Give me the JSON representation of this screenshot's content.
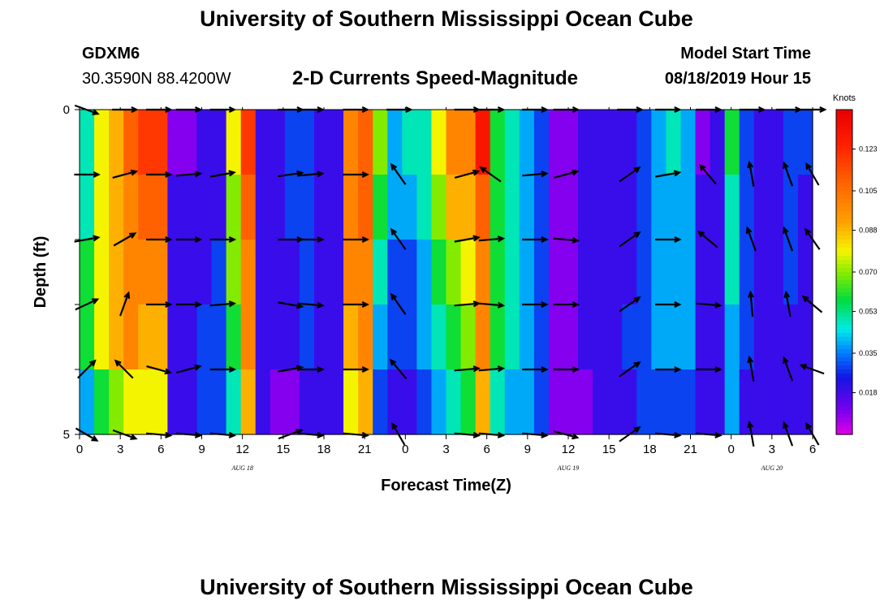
{
  "header": {
    "title": "University of Southern Mississippi Ocean Cube",
    "station": "GDXM6",
    "coords": "30.3590N 88.4200W",
    "subtitle": "2-D Currents Speed-Magnitude",
    "model_label": "Model Start Time",
    "model_time": "08/18/2019 Hour 15"
  },
  "footer": {
    "title": "University of Southern Mississippi Ocean Cube"
  },
  "chart_data": {
    "type": "heatmap",
    "title": "2-D Currents Speed-Magnitude",
    "xlabel": "Forecast Time(Z)",
    "ylabel": "Depth (ft)",
    "x_tick_labels": [
      "0",
      "3",
      "6",
      "9",
      "12",
      "15",
      "18",
      "21",
      "0",
      "3",
      "6",
      "9",
      "12",
      "15",
      "18",
      "21",
      "0",
      "3",
      "6"
    ],
    "x_hours_per_tick": 3,
    "x_range_hours": [
      0,
      54
    ],
    "day_labels": [
      {
        "label": "AUG 18",
        "hour": 12
      },
      {
        "label": "AUG 19",
        "hour": 36
      },
      {
        "label": "AUG 20",
        "hour": 51
      }
    ],
    "y_tick_labels": [
      "0",
      "5"
    ],
    "ylim": [
      0,
      5
    ],
    "depth_layers": 5,
    "colorbar": {
      "unit": "Knots",
      "ticks": [
        "0.123",
        "0.105",
        "0.088",
        "0.070",
        "0.053",
        "0.035",
        "0.018"
      ],
      "range": [
        0,
        0.14
      ]
    },
    "speed_knots": [
      [
        0.05,
        0.08,
        0.09,
        0.11,
        0.12,
        0.12,
        0.01,
        0.01,
        0.02,
        0.02,
        0.08,
        0.12,
        0.02,
        0.02,
        0.03,
        0.03,
        0.02,
        0.02,
        0.1,
        0.11,
        0.07,
        0.04,
        0.05,
        0.05,
        0.08,
        0.1,
        0.1,
        0.13,
        0.06,
        0.05,
        0.04,
        0.03,
        0.01,
        0.01,
        0.02,
        0.02,
        0.02,
        0.02,
        0.03,
        0.04,
        0.05,
        0.04,
        0.01,
        0.02,
        0.06,
        0.03,
        0.02,
        0.02,
        0.03,
        0.03
      ],
      [
        0.05,
        0.08,
        0.09,
        0.1,
        0.11,
        0.11,
        0.02,
        0.02,
        0.02,
        0.02,
        0.07,
        0.11,
        0.02,
        0.02,
        0.03,
        0.03,
        0.02,
        0.02,
        0.1,
        0.11,
        0.06,
        0.04,
        0.04,
        0.05,
        0.07,
        0.09,
        0.09,
        0.11,
        0.06,
        0.05,
        0.04,
        0.03,
        0.01,
        0.01,
        0.02,
        0.02,
        0.02,
        0.02,
        0.03,
        0.04,
        0.04,
        0.04,
        0.02,
        0.02,
        0.05,
        0.03,
        0.02,
        0.02,
        0.03,
        0.02
      ],
      [
        0.06,
        0.08,
        0.09,
        0.1,
        0.1,
        0.1,
        0.02,
        0.02,
        0.02,
        0.03,
        0.07,
        0.1,
        0.02,
        0.02,
        0.02,
        0.03,
        0.02,
        0.02,
        0.1,
        0.1,
        0.05,
        0.03,
        0.03,
        0.04,
        0.06,
        0.07,
        0.08,
        0.1,
        0.06,
        0.05,
        0.04,
        0.03,
        0.01,
        0.01,
        0.02,
        0.02,
        0.02,
        0.02,
        0.03,
        0.04,
        0.04,
        0.04,
        0.02,
        0.02,
        0.05,
        0.03,
        0.02,
        0.02,
        0.03,
        0.02
      ],
      [
        0.06,
        0.08,
        0.09,
        0.1,
        0.09,
        0.09,
        0.02,
        0.02,
        0.03,
        0.03,
        0.06,
        0.1,
        0.02,
        0.02,
        0.02,
        0.03,
        0.02,
        0.02,
        0.09,
        0.1,
        0.04,
        0.03,
        0.03,
        0.04,
        0.05,
        0.06,
        0.07,
        0.1,
        0.06,
        0.05,
        0.04,
        0.03,
        0.01,
        0.01,
        0.02,
        0.02,
        0.02,
        0.03,
        0.03,
        0.04,
        0.04,
        0.04,
        0.02,
        0.02,
        0.04,
        0.03,
        0.02,
        0.02,
        0.02,
        0.02
      ],
      [
        0.04,
        0.06,
        0.07,
        0.08,
        0.08,
        0.08,
        0.02,
        0.02,
        0.03,
        0.03,
        0.05,
        0.09,
        0.02,
        0.01,
        0.01,
        0.02,
        0.02,
        0.02,
        0.08,
        0.09,
        0.03,
        0.02,
        0.02,
        0.03,
        0.04,
        0.05,
        0.06,
        0.09,
        0.05,
        0.04,
        0.04,
        0.03,
        0.01,
        0.01,
        0.01,
        0.02,
        0.02,
        0.02,
        0.03,
        0.03,
        0.03,
        0.03,
        0.02,
        0.02,
        0.04,
        0.02,
        0.02,
        0.02,
        0.02,
        0.02
      ]
    ],
    "vector_columns_hours": [
      0.5,
      3.3,
      5.8,
      8,
      10.5,
      15.5,
      17,
      20.3,
      23.5,
      28.5,
      30.3,
      33.5,
      35.8,
      40.5,
      43.3,
      46.3,
      49.5,
      52.2,
      54
    ],
    "vector_depth_rows_ft": [
      0,
      1,
      2,
      3,
      4,
      5
    ],
    "vector_angles_deg": [
      [
        20,
        0,
        0,
        0,
        0,
        0,
        0,
        0,
        0,
        0,
        0,
        0,
        0,
        0,
        0,
        0,
        0,
        0,
        0
      ],
      [
        0,
        -15,
        0,
        -5,
        -10,
        -8,
        -5,
        0,
        -125,
        -15,
        -145,
        -5,
        -15,
        -35,
        -10,
        -130,
        -100,
        -110,
        -120
      ],
      [
        -10,
        -30,
        0,
        0,
        0,
        0,
        0,
        0,
        -125,
        -10,
        -5,
        0,
        5,
        -35,
        0,
        -140,
        -110,
        -110,
        -125
      ],
      [
        -25,
        -70,
        0,
        0,
        -5,
        10,
        5,
        0,
        -125,
        -5,
        5,
        0,
        0,
        -35,
        0,
        5,
        -95,
        -100,
        -140
      ],
      [
        -45,
        -135,
        15,
        -15,
        0,
        -10,
        0,
        0,
        -130,
        -5,
        -5,
        0,
        0,
        -35,
        0,
        0,
        -100,
        -110,
        -160
      ],
      [
        30,
        20,
        5,
        5,
        5,
        -20,
        5,
        5,
        -120,
        5,
        5,
        5,
        15,
        -35,
        5,
        5,
        -100,
        -110,
        -120
      ]
    ]
  }
}
